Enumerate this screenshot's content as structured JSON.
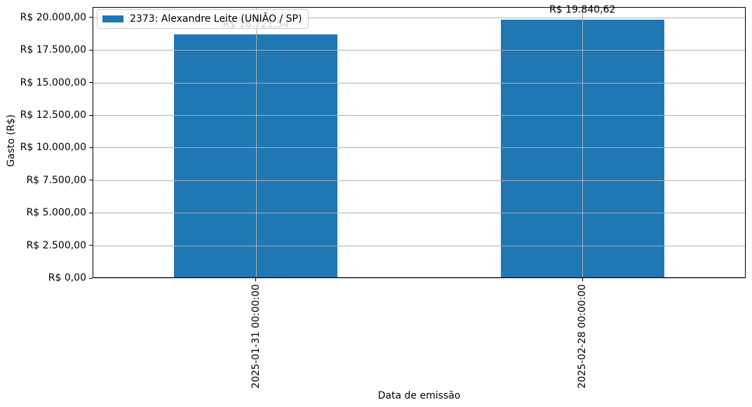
{
  "figure": {
    "background": "#ffffff",
    "text_color": "#000000"
  },
  "chart_data": {
    "type": "bar",
    "title": "",
    "xlabel": "Data de emissão",
    "ylabel": "Gasto (R$)",
    "categories": [
      "2025-01-31 00:00:00",
      "2025-02-28 00:00:00"
    ],
    "series": [
      {
        "name": "2373: Alexandre Leite (UNIÃO / SP)",
        "color": "#1f77b4",
        "values": [
          18721.54,
          19840.62
        ],
        "value_labels": [
          "R$ 18.721,54",
          "R$ 19.840,62"
        ]
      }
    ],
    "ylim": [
      0,
      20808
    ],
    "yticks": [
      {
        "value": 0,
        "label": "R$ 0,00"
      },
      {
        "value": 2500,
        "label": "R$ 2.500,00"
      },
      {
        "value": 5000,
        "label": "R$ 5.000,00"
      },
      {
        "value": 7500,
        "label": "R$ 7.500,00"
      },
      {
        "value": 10000,
        "label": "R$ 10.000,00"
      },
      {
        "value": 12500,
        "label": "R$ 12.500,00"
      },
      {
        "value": 15000,
        "label": "R$ 15.000,00"
      },
      {
        "value": 17500,
        "label": "R$ 17.500,00"
      },
      {
        "value": 20000,
        "label": "R$ 20.000,00"
      }
    ],
    "grid": "both",
    "grid_color": "#b0b0b0",
    "bar_width_fraction": 0.5,
    "legend": {
      "position": "upper-left",
      "entries": [
        {
          "label": "2373: Alexandre Leite (UNIÃO / SP)",
          "color": "#1f77b4"
        }
      ]
    }
  }
}
